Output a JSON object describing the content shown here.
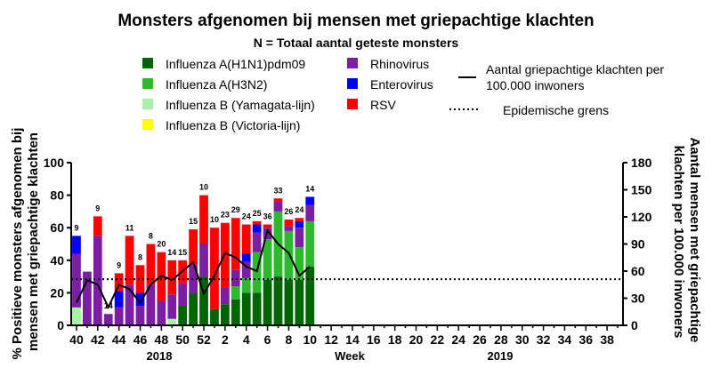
{
  "chart_data": {
    "type": "bar",
    "stacked": true,
    "title": "Monsters afgenomen bij mensen met griepachtige klachten",
    "subtitle": "N = Totaal aantal geteste monsters",
    "xlabel": "Week",
    "ylabel_left": "% Positieve monsters afgenomen bij mensen met griepachtige klachten",
    "ylabel_right": "Aantal mensen met griepachtige klachten per 100.000 inwoners",
    "ylim_left": [
      0,
      100
    ],
    "ylim_right": [
      0,
      180
    ],
    "yticks_left": [
      "0",
      "20",
      "40",
      "60",
      "80",
      "100"
    ],
    "yticks_right": [
      "0",
      "30",
      "60",
      "90",
      "120",
      "150",
      "180"
    ],
    "year_labels": [
      "2018",
      "2019"
    ],
    "weeks": [
      40,
      41,
      42,
      43,
      44,
      45,
      46,
      47,
      48,
      49,
      50,
      51,
      52,
      1,
      2,
      3,
      4,
      5,
      6,
      7,
      8,
      9,
      10,
      11,
      12,
      13,
      14,
      15,
      16,
      17,
      18,
      19,
      20,
      21,
      22,
      23,
      24,
      25,
      26,
      27,
      28,
      29,
      30,
      31,
      32,
      33,
      34,
      35,
      36,
      37,
      38,
      39
    ],
    "week_tick_labels": [
      "40",
      "42",
      "44",
      "46",
      "48",
      "50",
      "52",
      "2",
      "4",
      "6",
      "8",
      "10",
      "12",
      "14",
      "16",
      "18",
      "20",
      "22",
      "24",
      "26",
      "28",
      "30",
      "32",
      "34",
      "36",
      "38"
    ],
    "series": [
      {
        "name": "Influenza A(H1N1)pdm09",
        "color": "#006400",
        "values": [
          0,
          0,
          0,
          0,
          0,
          0,
          0,
          0,
          0,
          0,
          12,
          20,
          30,
          10,
          13,
          16,
          20,
          20,
          28,
          30,
          28,
          28,
          36
        ]
      },
      {
        "name": "Influenza A(H3N2)",
        "color": "#2db82d",
        "values": [
          0,
          0,
          0,
          0,
          0,
          0,
          0,
          0,
          0,
          0,
          0,
          0,
          0,
          0,
          0,
          8,
          9,
          25,
          25,
          40,
          30,
          20,
          28
        ]
      },
      {
        "name": "Influenza B (Yamagata-lijn)",
        "color": "#a9f0a9",
        "values": [
          11,
          0,
          0,
          0,
          0,
          0,
          0,
          0,
          0,
          4,
          0,
          0,
          0,
          0,
          0,
          0,
          0,
          0,
          0,
          0,
          0,
          0,
          0
        ]
      },
      {
        "name": "Influenza B (Victoria-lijn)",
        "color": "#ffff00",
        "values": [
          0,
          0,
          0,
          0,
          0,
          0,
          0,
          0,
          0,
          0,
          0,
          0,
          0,
          0,
          0,
          0,
          0,
          0,
          0,
          0,
          0,
          0,
          0
        ]
      },
      {
        "name": "Rhinovirus",
        "color": "#7b1fa2",
        "values": [
          33,
          33,
          55,
          7,
          11,
          25,
          12,
          25,
          15,
          15,
          14,
          17,
          20,
          0,
          10,
          10,
          10,
          12,
          7,
          6,
          3,
          12,
          10
        ]
      },
      {
        "name": "Enterovirus",
        "color": "#0000ff",
        "values": [
          11,
          0,
          0,
          0,
          10,
          0,
          8,
          0,
          0,
          0,
          0,
          0,
          0,
          0,
          0,
          0,
          5,
          5,
          0,
          0,
          0,
          4,
          5
        ]
      },
      {
        "name": "RSV",
        "color": "#ff0000",
        "values": [
          0,
          0,
          12,
          0,
          11,
          30,
          17,
          25,
          30,
          21,
          14,
          22,
          30,
          50,
          40,
          32,
          18,
          2,
          2,
          2,
          4,
          2,
          0
        ]
      }
    ],
    "sample_counts": [
      9,
      null,
      9,
      14,
      9,
      11,
      8,
      8,
      20,
      14,
      15,
      15,
      10,
      10,
      23,
      29,
      24,
      25,
      36,
      33,
      26,
      24,
      14
    ],
    "line": {
      "name": "Aantal griepachtige klachten per 100.000 inwoners",
      "values": [
        25,
        50,
        45,
        20,
        45,
        40,
        25,
        45,
        55,
        50,
        60,
        70,
        35,
        55,
        80,
        75,
        65,
        60,
        105,
        90,
        80,
        55,
        65
      ]
    },
    "epidemic_threshold": {
      "name": "Epidemische grens",
      "value": 51
    },
    "legend": {
      "placement": "top"
    }
  }
}
